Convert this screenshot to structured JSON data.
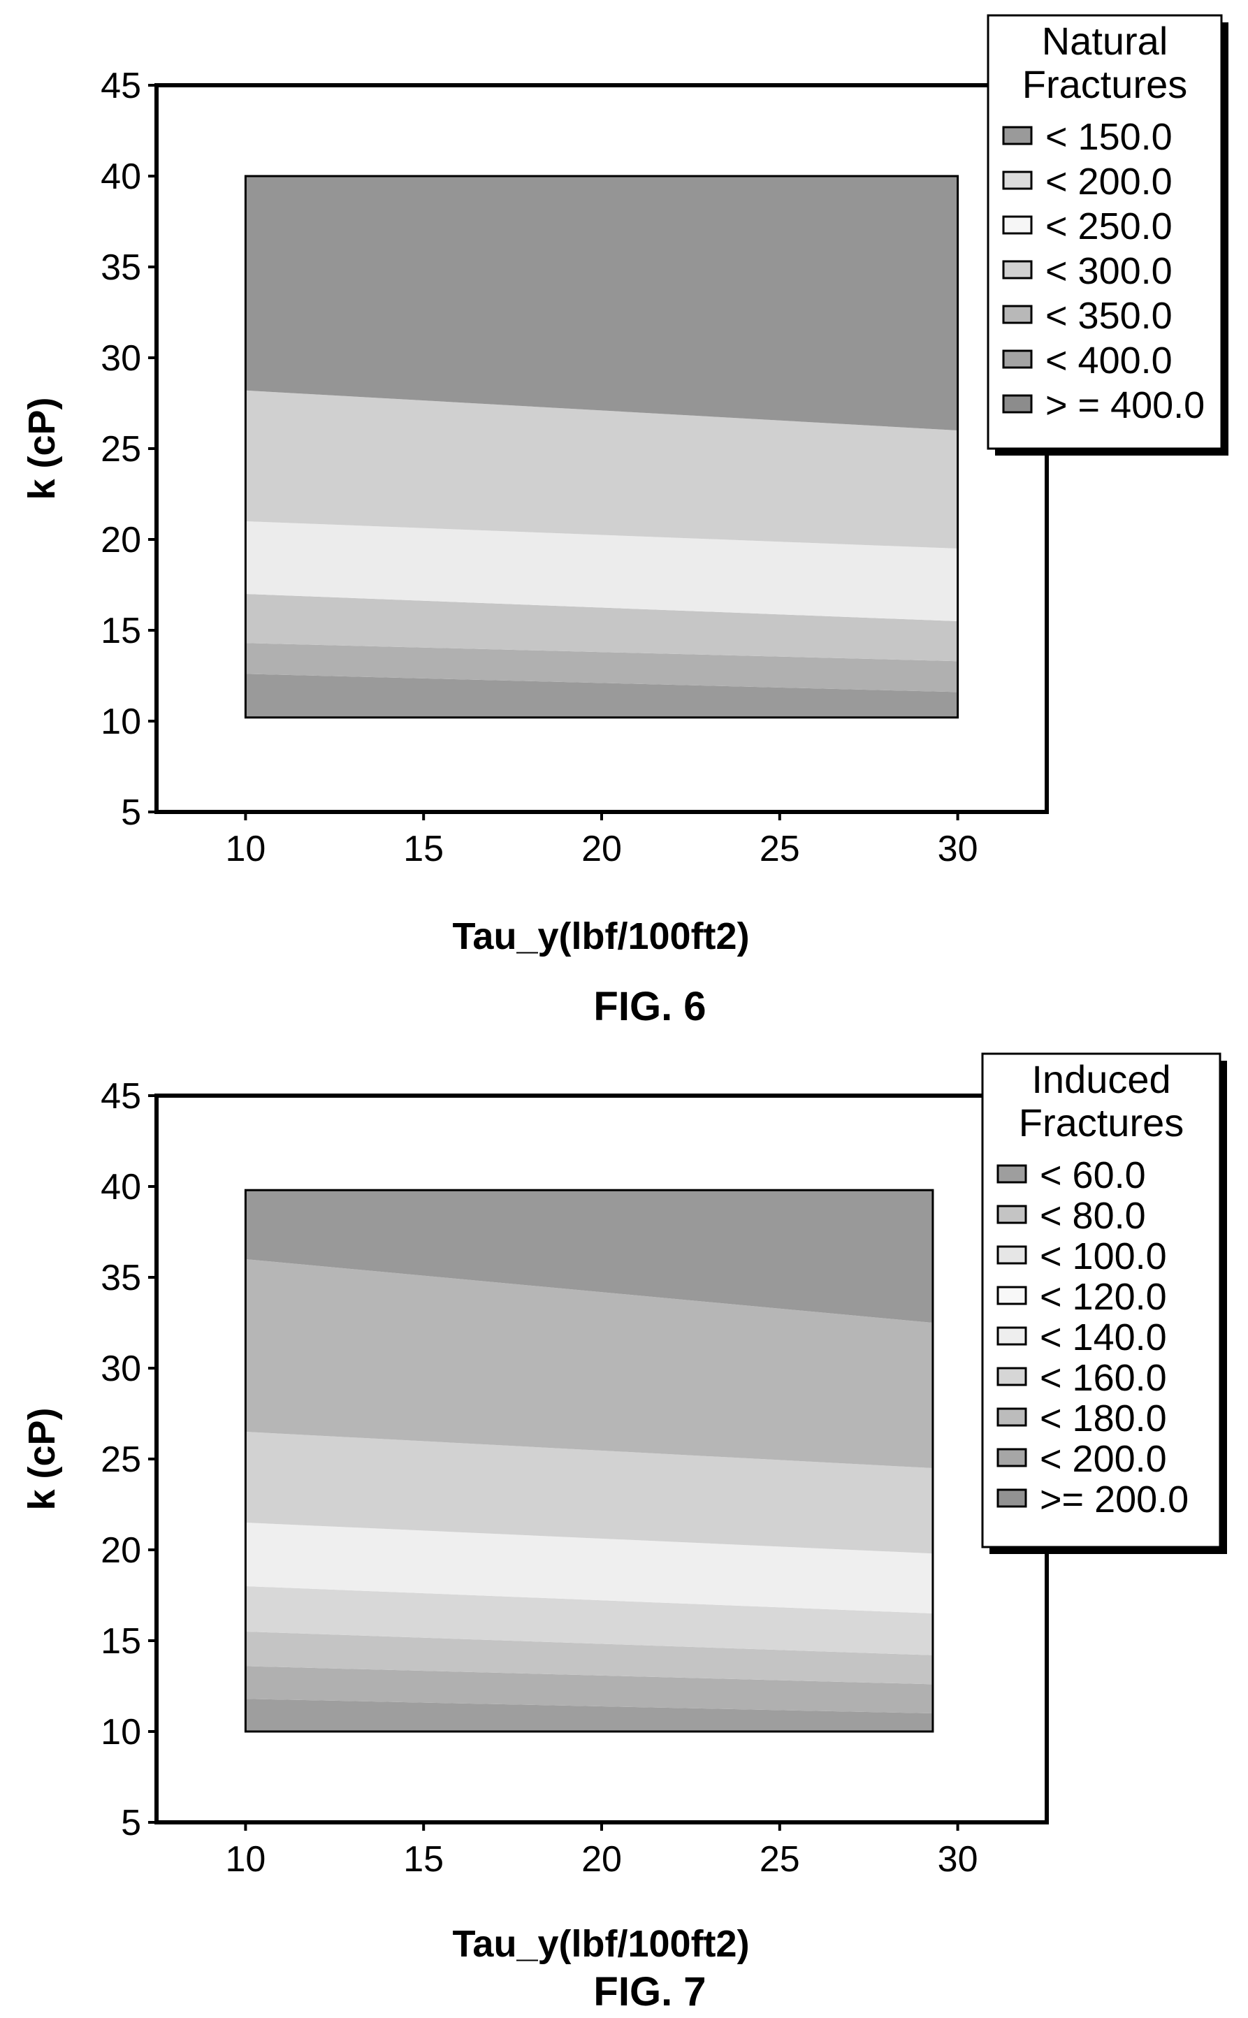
{
  "chart_data": [
    {
      "type": "heatmap",
      "caption": "FIG. 6",
      "xlabel": "Tau_y(lbf/100ft2)",
      "ylabel": "k (cP)",
      "xlim": [
        7.5,
        32.5
      ],
      "ylim": [
        5,
        45
      ],
      "x_ticks": [
        "10",
        "15",
        "20",
        "25",
        "30"
      ],
      "y_ticks": [
        "5",
        "10",
        "15",
        "20",
        "25",
        "30",
        "35",
        "40",
        "45"
      ],
      "data_extent": {
        "x": [
          10,
          30
        ],
        "y": [
          10.2,
          40
        ]
      },
      "legend": {
        "title_lines": [
          "Natural",
          "Fractures"
        ],
        "entries": [
          {
            "label": "< 150.0",
            "color": "#9a9a9a"
          },
          {
            "label": "< 200.0",
            "color": "#dcdcdc"
          },
          {
            "label": "< 250.0",
            "color": "#f6f6f6"
          },
          {
            "label": "< 300.0",
            "color": "#d2d2d2"
          },
          {
            "label": "< 350.0",
            "color": "#b8b8b8"
          },
          {
            "label": "<  400.0",
            "color": "#a4a4a4"
          },
          {
            "label": "> = 400.0",
            "color": "#8c8c8c"
          }
        ]
      },
      "bands": [
        {
          "y_start": [
            10.2,
            10.2
          ],
          "y_end": [
            12.6,
            11.6
          ],
          "color": "#9a9a9a"
        },
        {
          "y_start": [
            12.6,
            11.6
          ],
          "y_end": [
            14.3,
            13.3
          ],
          "color": "#b0b0b0"
        },
        {
          "y_start": [
            14.3,
            13.3
          ],
          "y_end": [
            17.0,
            15.5
          ],
          "color": "#c6c6c6"
        },
        {
          "y_start": [
            17.0,
            15.5
          ],
          "y_end": [
            21.0,
            19.5
          ],
          "color": "#ececec"
        },
        {
          "y_start": [
            21.0,
            19.5
          ],
          "y_end": [
            28.2,
            26.0
          ],
          "color": "#d0d0d0"
        },
        {
          "y_start": [
            28.2,
            26.0
          ],
          "y_end": [
            40.0,
            40.0
          ],
          "color": "#959595"
        }
      ]
    },
    {
      "type": "heatmap",
      "caption": "FIG. 7",
      "xlabel": "Tau_y(lbf/100ft2)",
      "ylabel": "k (cP)",
      "xlim": [
        7.5,
        32.5
      ],
      "ylim": [
        5,
        45
      ],
      "x_ticks": [
        "10",
        "15",
        "20",
        "25",
        "30"
      ],
      "y_ticks": [
        "5",
        "10",
        "15",
        "20",
        "25",
        "30",
        "35",
        "40",
        "45"
      ],
      "data_extent": {
        "x": [
          10,
          29.3
        ],
        "y": [
          10,
          39.8
        ]
      },
      "legend": {
        "title_lines": [
          "Induced",
          "Fractures"
        ],
        "entries": [
          {
            "label": "< 60.0",
            "color": "#9e9e9e"
          },
          {
            "label": "< 80.0",
            "color": "#c4c4c4"
          },
          {
            "label": "< 100.0",
            "color": "#e6e6e6"
          },
          {
            "label": "< 120.0",
            "color": "#f8f8f8"
          },
          {
            "label": "< 140.0",
            "color": "#eeeeee"
          },
          {
            "label": "< 160.0",
            "color": "#d6d6d6"
          },
          {
            "label": "< 180.0",
            "color": "#bcbcbc"
          },
          {
            "label": "< 200.0",
            "color": "#a6a6a6"
          },
          {
            "label": ">= 200.0",
            "color": "#929292"
          }
        ]
      },
      "bands": [
        {
          "y_start": [
            10.0,
            10.0
          ],
          "y_end": [
            11.8,
            11.0
          ],
          "color": "#9e9e9e"
        },
        {
          "y_start": [
            11.8,
            11.0
          ],
          "y_end": [
            13.6,
            12.6
          ],
          "color": "#b0b0b0"
        },
        {
          "y_start": [
            13.6,
            12.6
          ],
          "y_end": [
            15.5,
            14.2
          ],
          "color": "#c4c4c4"
        },
        {
          "y_start": [
            15.5,
            14.2
          ],
          "y_end": [
            18.0,
            16.5
          ],
          "color": "#d8d8d8"
        },
        {
          "y_start": [
            18.0,
            16.5
          ],
          "y_end": [
            21.5,
            19.8
          ],
          "color": "#efefef"
        },
        {
          "y_start": [
            21.5,
            19.8
          ],
          "y_end": [
            26.5,
            24.5
          ],
          "color": "#d2d2d2"
        },
        {
          "y_start": [
            26.5,
            24.5
          ],
          "y_end": [
            36.0,
            32.5
          ],
          "color": "#b6b6b6"
        },
        {
          "y_start": [
            36.0,
            32.5
          ],
          "y_end": [
            39.8,
            39.8
          ],
          "color": "#999999"
        }
      ]
    }
  ]
}
